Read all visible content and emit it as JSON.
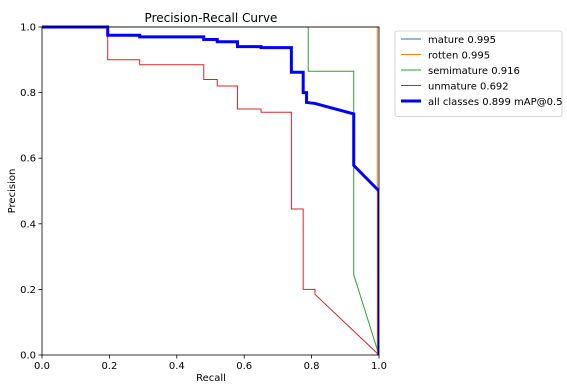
{
  "chart_data": {
    "type": "line",
    "title": "Precision-Recall Curve",
    "xlabel": "Recall",
    "ylabel": "Precision",
    "xlim": [
      0,
      1
    ],
    "ylim": [
      0,
      1
    ],
    "x_ticks": [
      "0.0",
      "0.2",
      "0.4",
      "0.6",
      "0.8",
      "1.0"
    ],
    "y_ticks": [
      "0.0",
      "0.2",
      "0.4",
      "0.6",
      "0.8",
      "1.0"
    ],
    "grid": false,
    "legend_position": "outside-right-top",
    "series": [
      {
        "name": "mature 0.995",
        "color": "#1f77b4",
        "line_width": "thin",
        "points": [
          [
            0,
            1
          ],
          [
            1,
            1
          ],
          [
            1,
            0
          ]
        ]
      },
      {
        "name": "rotten 0.995",
        "color": "#ff7f0e",
        "line_width": "thin",
        "points": [
          [
            0,
            1
          ],
          [
            0.995,
            1
          ],
          [
            0.995,
            0
          ],
          [
            1,
            0
          ]
        ]
      },
      {
        "name": "semimature 0.916",
        "color": "#2ca02c",
        "line_width": "thin",
        "points": [
          [
            0,
            1
          ],
          [
            0.79,
            1
          ],
          [
            0.79,
            0.865
          ],
          [
            0.925,
            0.865
          ],
          [
            0.925,
            0.245
          ],
          [
            1,
            0
          ]
        ]
      },
      {
        "name": "unmature 0.692",
        "color": "#d62728",
        "line_width": "thin",
        "points": [
          [
            0,
            1
          ],
          [
            0.195,
            1
          ],
          [
            0.195,
            0.9
          ],
          [
            0.29,
            0.9
          ],
          [
            0.29,
            0.885
          ],
          [
            0.48,
            0.885
          ],
          [
            0.48,
            0.84
          ],
          [
            0.52,
            0.84
          ],
          [
            0.52,
            0.82
          ],
          [
            0.58,
            0.82
          ],
          [
            0.58,
            0.75
          ],
          [
            0.65,
            0.75
          ],
          [
            0.65,
            0.74
          ],
          [
            0.74,
            0.74
          ],
          [
            0.74,
            0.445
          ],
          [
            0.775,
            0.445
          ],
          [
            0.775,
            0.2
          ],
          [
            0.81,
            0.2
          ],
          [
            0.81,
            0.185
          ],
          [
            1,
            0
          ]
        ]
      },
      {
        "name": "all classes 0.899 mAP@0.5",
        "color": "#0000ff",
        "line_width": "thick",
        "points": [
          [
            0,
            1
          ],
          [
            0.195,
            1
          ],
          [
            0.195,
            0.975
          ],
          [
            0.29,
            0.975
          ],
          [
            0.29,
            0.97
          ],
          [
            0.48,
            0.97
          ],
          [
            0.48,
            0.962
          ],
          [
            0.52,
            0.962
          ],
          [
            0.52,
            0.955
          ],
          [
            0.58,
            0.955
          ],
          [
            0.58,
            0.94
          ],
          [
            0.65,
            0.94
          ],
          [
            0.65,
            0.937
          ],
          [
            0.74,
            0.937
          ],
          [
            0.74,
            0.862
          ],
          [
            0.775,
            0.862
          ],
          [
            0.775,
            0.8
          ],
          [
            0.785,
            0.8
          ],
          [
            0.785,
            0.77
          ],
          [
            0.81,
            0.767
          ],
          [
            0.925,
            0.735
          ],
          [
            0.925,
            0.578
          ],
          [
            1,
            0.5
          ],
          [
            1,
            0
          ]
        ]
      }
    ]
  }
}
